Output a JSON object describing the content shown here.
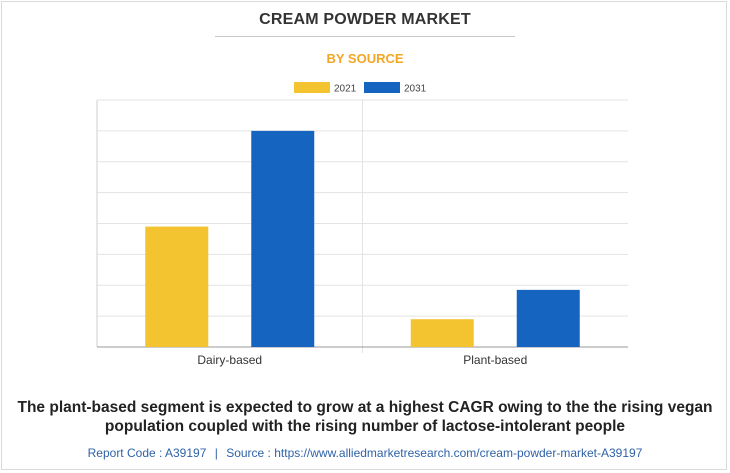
{
  "title": "CREAM POWDER MARKET",
  "subtitle": "BY SOURCE",
  "caption": "The plant-based segment is expected to grow at a highest CAGR owing to the the rising vegan population coupled with the rising number of lactose-intolerant people",
  "footer": {
    "report_code": "Report Code : A39197",
    "separator": "|",
    "source": "Source : https://www.alliedmarketresearch.com/cream-powder-market-A39197"
  },
  "colors": {
    "subtitle": "#f5a623",
    "series_2021": "#f4c430",
    "series_2031": "#1565c0",
    "grid": "#e3e3e3",
    "axis": "#9a9a9a"
  },
  "chart_data": {
    "type": "bar",
    "categories": [
      "Dairy-based",
      "Plant-based"
    ],
    "series": [
      {
        "name": "2021",
        "values": [
          3.9,
          0.9
        ]
      },
      {
        "name": "2031",
        "values": [
          7.0,
          1.85
        ]
      }
    ],
    "ylim": [
      0,
      8
    ],
    "grid": true,
    "legend": "top-center",
    "xlabel": "",
    "ylabel": ""
  }
}
